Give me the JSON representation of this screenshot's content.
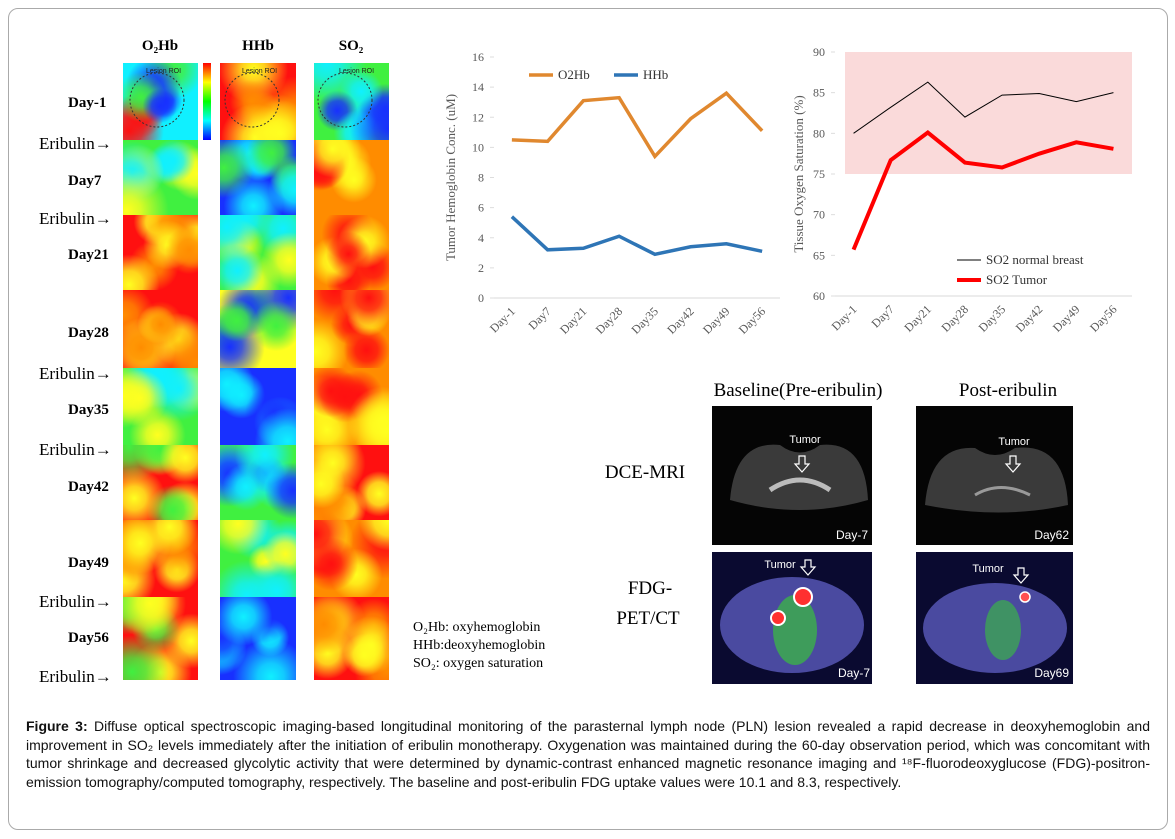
{
  "heatmap": {
    "columns": [
      "O₂Hb",
      "HHb",
      "SO₂"
    ],
    "lesion_roi": [
      "Lesion ROI",
      "Lesion ROI",
      "Lesion ROI"
    ],
    "days": [
      "Day-1",
      "Day7",
      "Day21",
      "Day28",
      "Day35",
      "Day42",
      "Day49",
      "Day56"
    ],
    "eribulin": [
      "Eribulin→",
      "Eribulin→",
      "Eribulin→",
      "Eribulin→",
      "Eribulin→",
      "Eribulin→"
    ],
    "legend": [
      "O₂Hb: oxyhemoglobin",
      "HHb:deoxyhemoglobin",
      "SO₂: oxygen saturation"
    ]
  },
  "imaging": {
    "columns": [
      "Baseline(Pre-eribulin)",
      "Post-eribulin"
    ],
    "rows": [
      "DCE-MRI",
      "FDG-",
      "PET/CT"
    ],
    "panels": [
      {
        "tumor": "Tumor",
        "day": "Day-7"
      },
      {
        "tumor": "Tumor",
        "day": "Day62"
      },
      {
        "tumor": "Tumor",
        "day": "Day-7"
      },
      {
        "tumor": "Tumor",
        "day": "Day69"
      }
    ]
  },
  "chart_data": [
    {
      "type": "line",
      "ylabel": "Tumor Hemoglobin Conc. (uM)",
      "categories": [
        "Day-1",
        "Day7",
        "Day21",
        "Day28",
        "Day35",
        "Day42",
        "Day49",
        "Day56"
      ],
      "series": [
        {
          "name": "O2Hb",
          "color": "#e0882f",
          "values": [
            10.5,
            10.4,
            13.1,
            13.3,
            9.4,
            11.9,
            13.6,
            11.1
          ]
        },
        {
          "name": "HHb",
          "color": "#2e75b6",
          "values": [
            5.4,
            3.2,
            3.3,
            4.1,
            2.9,
            3.4,
            3.6,
            3.1
          ]
        }
      ],
      "ylim": [
        0,
        16
      ],
      "yticks": [
        0,
        2,
        4,
        6,
        8,
        10,
        12,
        14,
        16
      ],
      "legend": "top"
    },
    {
      "type": "line",
      "ylabel": "Tissue Oxygen Saturation (%)",
      "categories": [
        "Day-1",
        "Day7",
        "Day21",
        "Day28",
        "Day35",
        "Day42",
        "Day49",
        "Day56"
      ],
      "series": [
        {
          "name": "SO2 normal breast",
          "color": "#000000",
          "values": [
            80,
            83.2,
            86.3,
            82,
            84.7,
            84.9,
            83.9,
            85
          ]
        },
        {
          "name": "SO2 Tumor",
          "color": "#ff0000",
          "values": [
            65.7,
            76.7,
            80.1,
            76.4,
            75.8,
            77.5,
            78.9,
            78.1
          ]
        }
      ],
      "ylim": [
        60,
        90
      ],
      "yticks": [
        60,
        65,
        70,
        75,
        80,
        85,
        90
      ],
      "band": [
        75,
        90
      ],
      "band_color": "#fadada",
      "legend": "bottom-right"
    }
  ],
  "caption": {
    "label": "Figure 3:",
    "text": " Diffuse optical spectroscopic imaging-based longitudinal monitoring of the parasternal lymph node (PLN) lesion revealed a rapid decrease in deoxyhemoglobin and improvement in SO₂ levels immediately after the initiation of eribulin monotherapy. Oxygenation was maintained during the 60-day observation period, which was concomitant with tumor shrinkage and decreased glycolytic activity that were determined by dynamic-contrast enhanced magnetic resonance imaging and ¹⁸F-fluorodeoxyglucose (FDG)-positron-emission tomography/computed tomography, respectively. The baseline and post-eribulin FDG uptake values were 10.1 and 8.3, respectively."
  }
}
